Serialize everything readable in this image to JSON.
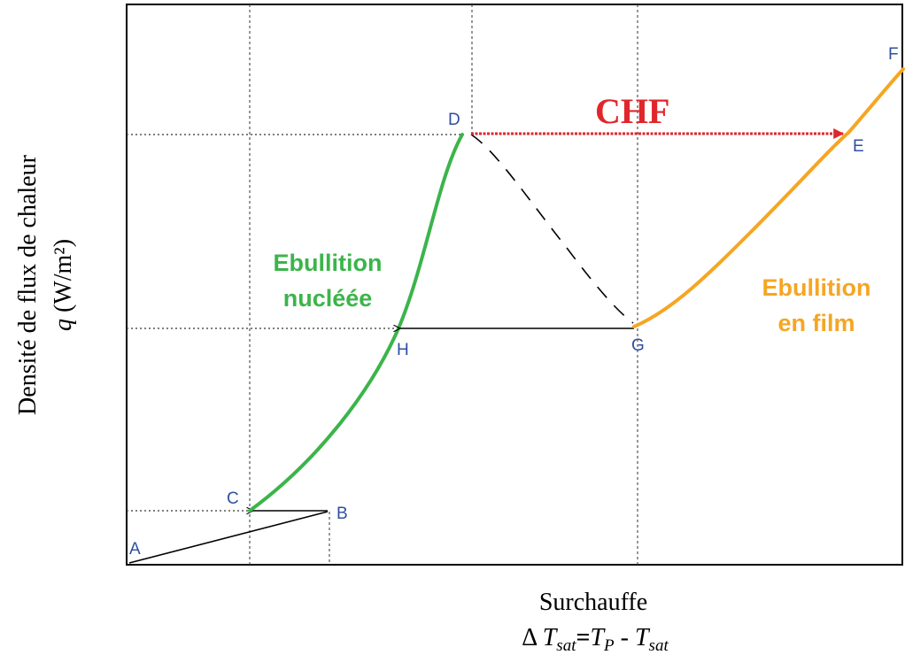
{
  "colors": {
    "nucleate": "#3cb44a",
    "film": "#f5a623",
    "chf": "#e0262b",
    "point_label": "#2e4fa0",
    "grid": "#555555",
    "axis": "#000000"
  },
  "points": {
    "A": "A",
    "B": "B",
    "C": "C",
    "D": "D",
    "E": "E",
    "F": "F",
    "G": "G",
    "H": "H"
  },
  "labels": {
    "chf": "CHF",
    "nucleate_line1": "Ebullition",
    "nucleate_line2": "nucléée",
    "film_line1": "Ebullition",
    "film_line2": "en film"
  },
  "axes": {
    "ylabel_line1": "Densité de flux de chaleur",
    "ylabel_q": "q",
    "ylabel_unit": " (W/m²)",
    "xlabel_line1": "Surchauffe",
    "xlabel_delta": "Δ",
    "xlabel_T1": "T",
    "xlabel_sub1": "sat",
    "xlabel_eq": "=",
    "xlabel_T2": "T",
    "xlabel_sub2": "P",
    "xlabel_minus": " - ",
    "xlabel_T3": "T",
    "xlabel_sub3": "sat"
  }
}
